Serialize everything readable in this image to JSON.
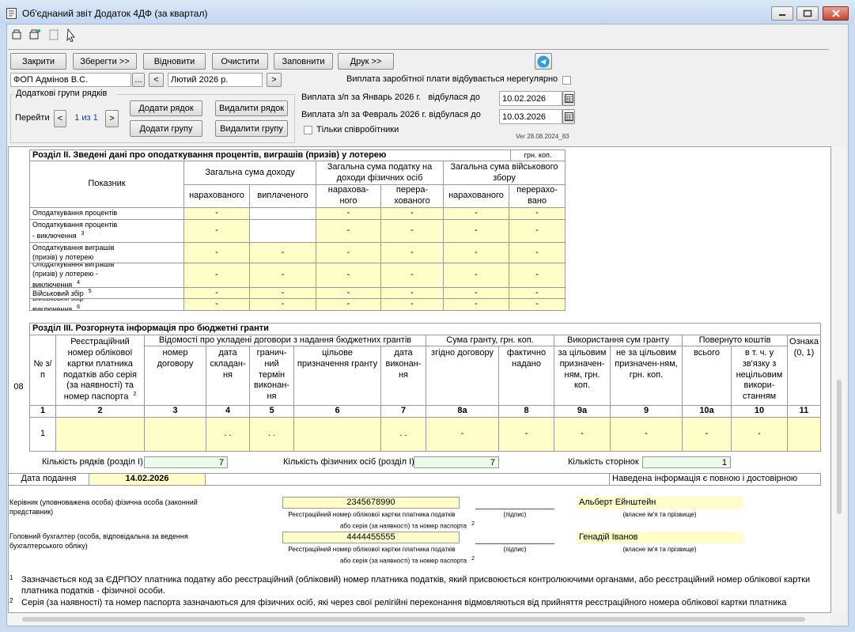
{
  "window": {
    "title": "Об'єднаний звіт Додаток 4ДФ (за квартал)"
  },
  "toolbar": {
    "buttons": [
      "Закрити",
      "Зберегти >>",
      "Відновити",
      "Очистити",
      "Заповнити",
      "Друк >>"
    ]
  },
  "header": {
    "company": "ФОП Адмінов В.С.",
    "browse": "...",
    "prev": "<",
    "period": "Лютий 2026 р.",
    "next": ">",
    "irregular": "Виплата заробітної плати відбувається нерегулярно",
    "group_title": "Додаткові групи рядків",
    "goto": "Перейти",
    "page_prev": "<",
    "page": "1 из 1",
    "page_next": ">",
    "add_row": "Додати рядок",
    "del_row": "Видалити рядок",
    "add_group": "Додати групу",
    "del_group": "Видалити групу",
    "pay1_label": "Виплата з/п за Январь 2026 г.   відбулася до",
    "pay1_date": "10.02.2026",
    "pay2_label": "Виплата з/п за Февраль 2026 г. відбулася до",
    "pay2_date": "10.03.2026",
    "only_employees": "Тільки співробітники",
    "version": "Ver 28.08.2024_83"
  },
  "section2": {
    "title": "Розділ II. Зведені дані про оподаткування процентів, виграшів (призів) у лотерею",
    "unit": "грн. коп.",
    "indicator": "Показник",
    "groups": [
      "Загальна сума доходу",
      "Загальна сума податку на доходи фізичних осіб",
      "Загальна сума військового збору"
    ],
    "subheaders": [
      "нарахованого",
      "виплаченого",
      "нарахова-ного",
      "перера-хованого",
      "нарахованого",
      "перерахо-вано"
    ],
    "rows": [
      {
        "label": "Оподаткування процентів",
        "sup": null,
        "cells": [
          "-",
          "",
          "-",
          "-",
          "-",
          "-"
        ]
      },
      {
        "label": "Оподаткування процентів - виключення",
        "sup": "3",
        "cells": [
          "-",
          "",
          "-",
          "-",
          "-",
          "-"
        ]
      },
      {
        "label": "Оподаткування виграшів (призів) у лотерею",
        "sup": null,
        "cells": [
          "-",
          "-",
          "-",
          "-",
          "-",
          "-"
        ]
      },
      {
        "label": "Оподаткування виграшів (призів) у лотерею - виключення",
        "sup": "4",
        "cells": [
          "-",
          "-",
          "-",
          "-",
          "-",
          "-"
        ]
      },
      {
        "label": "Військовий збір",
        "sup": "5",
        "cells": [
          "-",
          "-",
          "-",
          "-",
          "-",
          "-"
        ]
      },
      {
        "label": "Військовий збір - виключення",
        "sup": "6",
        "cells": [
          "-",
          "-",
          "-",
          "-",
          "-",
          "-"
        ]
      }
    ]
  },
  "section3": {
    "row_code": "08",
    "title": "Розділ III. Розгорнута інформація про бюджетні гранти",
    "groups": [
      "Відомості про укладені договори з надання бюджетних грантів",
      "Сума гранту, грн. коп.",
      "Використання сум гранту",
      "Повернуто коштів"
    ],
    "columns": [
      "№ з/п",
      "Реєстраційний номер облікової картки платника податків або серія (за наявності) та номер паспорта",
      "номер договору",
      "дата складан-ня",
      "гранич-ний термін виконан-ня",
      "цільове призначення гранту",
      "дата виконан-ня",
      "згідно договору",
      "фактично надано",
      "за цільовим призначен-ням, грн. коп.",
      "не за цільовим призначен-ням, грн. коп.",
      "всього",
      "в т. ч. у зв'язку з нецільовим викори-станням",
      "Ознака (0, 1)"
    ],
    "col2_sup": "2",
    "numbers": [
      "1",
      "2",
      "3",
      "4",
      "5",
      "6",
      "7",
      "8а",
      "8",
      "9а",
      "9",
      "10а",
      "10",
      "11"
    ],
    "rows": [
      [
        "1",
        "",
        "",
        ". .",
        ". .",
        "",
        ". .",
        "-",
        "-",
        "-",
        "-",
        "-",
        "-",
        ""
      ]
    ]
  },
  "summary": {
    "rows_label": "Кількість рядків (розділ I)",
    "rows_value": 7,
    "persons_label": "Кількість фізичних осіб (розділ I)",
    "persons_value": 7,
    "pages_label": "Кількість сторінок",
    "pages_value": 1
  },
  "submission": {
    "label": "Дата подання",
    "date": "14.02.2026",
    "statement": "Наведена інформація є повною і достовірною"
  },
  "signatures": [
    {
      "role": "Керівник (уповноважена особа) фізична особа (законний представник)",
      "id": "2345678990",
      "id_caption1": "Реєстраційний номер облікової картки платника податків",
      "id_caption2": "або серія (за наявності) та номер паспорта",
      "id_sup": "2",
      "sign_caption": "(підпис)",
      "name": "Альберт Ейнштейн",
      "name_caption": "(власне ім'я та прізвище)"
    },
    {
      "role": "Головний бухгалтер (особа, відповідальна за ведення бухгалтерського обліку)",
      "id": "4444455555",
      "id_caption1": "Реєстраційний номер облікової картки платника податків",
      "id_caption2": "або серія (за наявності) та номер паспорта",
      "id_sup": "2",
      "sign_caption": "(підпис)",
      "name": "Генадій Іванов",
      "name_caption": "(власне ім'я та прізвище)"
    }
  ],
  "footnotes": [
    {
      "mark": "1",
      "text": "Зазначається код за ЄДРПОУ платника податку або реєстраційний (обліковий) номер платника податків, який присвоюється контролюючими органами, або реєстраційний номер облікової картки платника податків - фізичної особи."
    },
    {
      "mark": "2",
      "text": "Серія (за наявності) та номер паспорта зазначаються для фізичних осіб, які через свої релігійні переконання відмовляються від прийняття реєстраційного номера облікової картки платника"
    }
  ]
}
